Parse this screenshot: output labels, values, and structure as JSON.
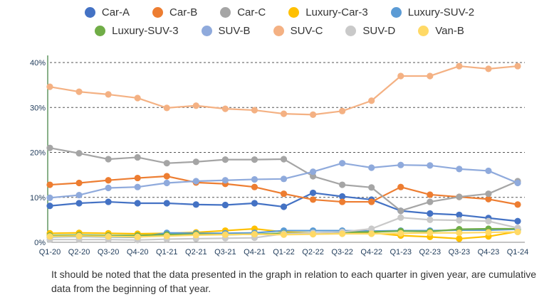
{
  "chart_data": {
    "type": "line",
    "title": "",
    "xlabel": "",
    "ylabel": "",
    "ylim": [
      0,
      40
    ],
    "yticks": [
      0,
      10,
      20,
      30,
      40
    ],
    "ytick_labels": [
      "0%",
      "10%",
      "20%",
      "30%",
      "40%"
    ],
    "grid": "horizontal dashed",
    "legend_placement": "top",
    "categories": [
      "Q1-20",
      "Q2-20",
      "Q3-20",
      "Q4-20",
      "Q1-21",
      "Q2-21",
      "Q3-21",
      "Q4-21",
      "Q1-22",
      "Q2-22",
      "Q3-22",
      "Q4-22",
      "Q1-23",
      "Q2-23",
      "Q3-23",
      "Q4-23",
      "Q1-24"
    ],
    "series": [
      {
        "name": "Car-A",
        "color": "#4472c4",
        "values": [
          8.1,
          8.7,
          9.0,
          8.7,
          8.7,
          8.4,
          8.3,
          8.7,
          7.9,
          11.0,
          10.2,
          9.5,
          7.0,
          6.4,
          6.1,
          5.4,
          4.7
        ]
      },
      {
        "name": "Car-B",
        "color": "#ed7d31",
        "values": [
          12.8,
          13.2,
          13.8,
          14.3,
          14.7,
          13.3,
          13.0,
          12.3,
          10.8,
          9.5,
          9.0,
          9.0,
          12.3,
          10.6,
          10.1,
          9.6,
          8.4
        ]
      },
      {
        "name": "Car-C",
        "color": "#a5a5a5",
        "values": [
          21.0,
          19.8,
          18.5,
          18.9,
          17.6,
          17.9,
          18.4,
          18.4,
          18.5,
          14.7,
          12.8,
          12.2,
          7.0,
          9.0,
          10.1,
          10.8,
          13.6
        ]
      },
      {
        "name": "Luxury-Car-3",
        "color": "#ffc000",
        "values": [
          2.0,
          2.1,
          2.0,
          1.9,
          2.0,
          2.2,
          2.6,
          3.0,
          2.3,
          2.1,
          2.2,
          2.1,
          1.5,
          1.2,
          0.8,
          1.3,
          2.4
        ]
      },
      {
        "name": "Luxury-SUV-2",
        "color": "#5b9bd5",
        "values": [
          1.2,
          1.3,
          1.2,
          1.1,
          2.1,
          2.0,
          2.0,
          2.1,
          2.6,
          2.6,
          2.6,
          2.5,
          2.6,
          2.6,
          2.7,
          2.7,
          2.9
        ]
      },
      {
        "name": "Luxury-SUV-3",
        "color": "#70ad47",
        "values": [
          1.5,
          1.6,
          1.5,
          1.5,
          1.7,
          1.8,
          1.7,
          1.8,
          2.0,
          2.1,
          2.2,
          2.3,
          2.5,
          2.4,
          2.9,
          3.0,
          3.0
        ]
      },
      {
        "name": "SUV-B",
        "color": "#8faadc",
        "values": [
          9.9,
          10.5,
          12.1,
          12.3,
          13.2,
          13.6,
          13.8,
          14.0,
          14.1,
          15.7,
          17.6,
          16.6,
          17.2,
          17.1,
          16.3,
          15.9,
          13.2
        ]
      },
      {
        "name": "SUV-C",
        "color": "#f4b183",
        "values": [
          34.6,
          33.5,
          32.9,
          32.1,
          29.9,
          30.4,
          29.7,
          29.4,
          28.6,
          28.4,
          29.2,
          31.5,
          37.0,
          37.0,
          39.2,
          38.6,
          39.2
        ]
      },
      {
        "name": "SUV-D",
        "color": "#c9c9c9",
        "values": [
          0.6,
          0.6,
          0.6,
          0.5,
          0.7,
          0.8,
          0.9,
          1.0,
          1.9,
          2.1,
          2.3,
          3.0,
          5.5,
          5.0,
          4.9,
          4.7,
          3.2
        ]
      },
      {
        "name": "Van-B",
        "color": "#ffd966",
        "values": [
          1.3,
          1.4,
          1.3,
          1.2,
          1.4,
          1.6,
          1.7,
          1.8,
          1.7,
          1.8,
          1.9,
          1.9,
          2.0,
          2.1,
          2.1,
          2.2,
          2.3
        ]
      }
    ]
  },
  "note": "It should be noted that the data presented in the graph in relation to each quarter in given year, are cumulative data from the beginning of that year."
}
